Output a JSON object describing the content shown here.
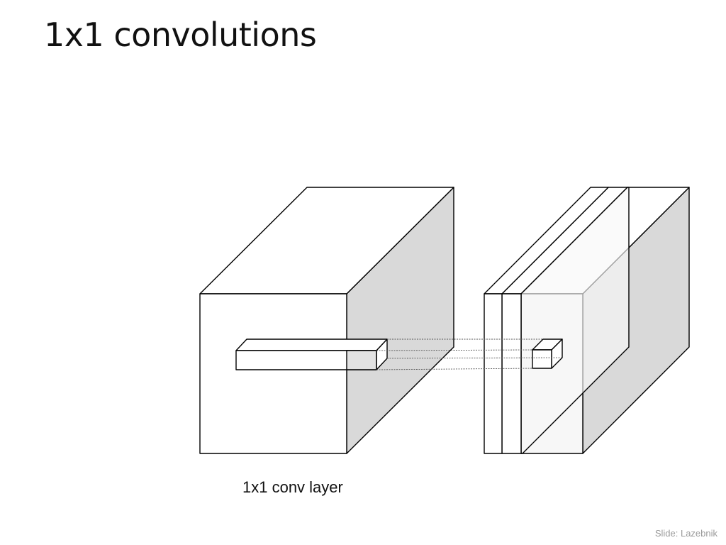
{
  "slide": {
    "title": "1x1 convolutions",
    "caption": "1x1 conv layer",
    "credit": "Slide: Lazebnik"
  },
  "colors": {
    "stroke": "#000000",
    "side_face": "#d9d9d9",
    "front_face": "#ffffff",
    "output_slab_face": "#f7f7f7",
    "connector": "#555555"
  }
}
